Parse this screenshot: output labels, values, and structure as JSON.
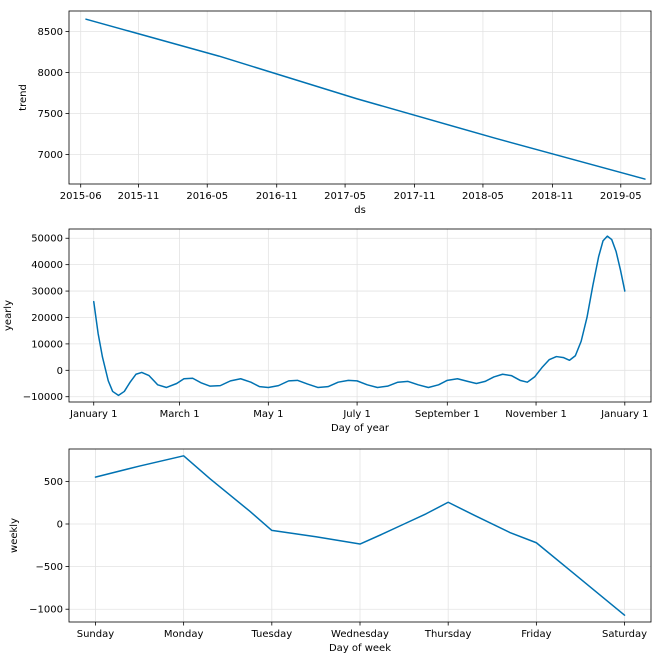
{
  "chart_data": [
    {
      "type": "line",
      "title": "",
      "xlabel": "ds",
      "ylabel": "trend",
      "x_axis": "date",
      "xlim": [
        "2015-05-01",
        "2019-07-20"
      ],
      "ylim": [
        6640,
        8750
      ],
      "xticks": [
        {
          "value": "2015-06-01",
          "label": "2015-06"
        },
        {
          "value": "2015-11-01",
          "label": "2015-11"
        },
        {
          "value": "2016-05-01",
          "label": "2016-05"
        },
        {
          "value": "2016-11-01",
          "label": "2016-11"
        },
        {
          "value": "2017-05-01",
          "label": "2017-05"
        },
        {
          "value": "2017-11-01",
          "label": "2017-11"
        },
        {
          "value": "2018-05-01",
          "label": "2018-05"
        },
        {
          "value": "2018-11-01",
          "label": "2018-11"
        },
        {
          "value": "2019-05-01",
          "label": "2019-05"
        }
      ],
      "yticks": [
        {
          "value": 7000,
          "label": "7000"
        },
        {
          "value": 7500,
          "label": "7500"
        },
        {
          "value": 8000,
          "label": "8000"
        },
        {
          "value": 8500,
          "label": "8500"
        }
      ],
      "grid": true,
      "series": [
        {
          "color": "#0072b2",
          "points": [
            {
              "x": "2015-06-15",
              "y": 8650
            },
            {
              "x": "2016-06-01",
              "y": 8200
            },
            {
              "x": "2017-06-01",
              "y": 7680
            },
            {
              "x": "2018-06-01",
              "y": 7200
            },
            {
              "x": "2019-07-04",
              "y": 6700
            }
          ]
        }
      ]
    },
    {
      "type": "line",
      "title": "",
      "xlabel": "Day of year",
      "ylabel": "yearly",
      "xlim": [
        -17,
        383
      ],
      "ylim": [
        -12000,
        53500
      ],
      "xticks": [
        {
          "value": 0,
          "label": "January 1"
        },
        {
          "value": 59,
          "label": "March 1"
        },
        {
          "value": 120,
          "label": "May 1"
        },
        {
          "value": 181,
          "label": "July 1"
        },
        {
          "value": 243,
          "label": "September 1"
        },
        {
          "value": 304,
          "label": "November 1"
        },
        {
          "value": 365,
          "label": "January 1"
        }
      ],
      "yticks": [
        {
          "value": -10000,
          "label": "−10000"
        },
        {
          "value": 0,
          "label": "0"
        },
        {
          "value": 10000,
          "label": "10000"
        },
        {
          "value": 20000,
          "label": "20000"
        },
        {
          "value": 30000,
          "label": "30000"
        },
        {
          "value": 40000,
          "label": "40000"
        },
        {
          "value": 50000,
          "label": "50000"
        }
      ],
      "grid": true,
      "series": [
        {
          "color": "#0072b2",
          "points": [
            {
              "x": 0,
              "y": 26000
            },
            {
              "x": 3,
              "y": 14000
            },
            {
              "x": 6,
              "y": 5000
            },
            {
              "x": 10,
              "y": -4000
            },
            {
              "x": 13,
              "y": -8000
            },
            {
              "x": 17,
              "y": -9500
            },
            {
              "x": 21,
              "y": -8000
            },
            {
              "x": 25,
              "y": -4500
            },
            {
              "x": 29,
              "y": -1500
            },
            {
              "x": 33,
              "y": -800
            },
            {
              "x": 38,
              "y": -2000
            },
            {
              "x": 44,
              "y": -5500
            },
            {
              "x": 50,
              "y": -6500
            },
            {
              "x": 57,
              "y": -5000
            },
            {
              "x": 62,
              "y": -3200
            },
            {
              "x": 68,
              "y": -3000
            },
            {
              "x": 74,
              "y": -4800
            },
            {
              "x": 80,
              "y": -6000
            },
            {
              "x": 87,
              "y": -5800
            },
            {
              "x": 94,
              "y": -4000
            },
            {
              "x": 101,
              "y": -3200
            },
            {
              "x": 108,
              "y": -4500
            },
            {
              "x": 114,
              "y": -6200
            },
            {
              "x": 120,
              "y": -6500
            },
            {
              "x": 127,
              "y": -5800
            },
            {
              "x": 134,
              "y": -4000
            },
            {
              "x": 140,
              "y": -3800
            },
            {
              "x": 147,
              "y": -5200
            },
            {
              "x": 154,
              "y": -6500
            },
            {
              "x": 161,
              "y": -6200
            },
            {
              "x": 168,
              "y": -4500
            },
            {
              "x": 175,
              "y": -3800
            },
            {
              "x": 181,
              "y": -4000
            },
            {
              "x": 188,
              "y": -5500
            },
            {
              "x": 195,
              "y": -6500
            },
            {
              "x": 202,
              "y": -6000
            },
            {
              "x": 209,
              "y": -4500
            },
            {
              "x": 216,
              "y": -4200
            },
            {
              "x": 223,
              "y": -5500
            },
            {
              "x": 230,
              "y": -6500
            },
            {
              "x": 237,
              "y": -5500
            },
            {
              "x": 243,
              "y": -3800
            },
            {
              "x": 250,
              "y": -3200
            },
            {
              "x": 257,
              "y": -4200
            },
            {
              "x": 263,
              "y": -5000
            },
            {
              "x": 269,
              "y": -4200
            },
            {
              "x": 275,
              "y": -2500
            },
            {
              "x": 281,
              "y": -1500
            },
            {
              "x": 287,
              "y": -2000
            },
            {
              "x": 293,
              "y": -3800
            },
            {
              "x": 298,
              "y": -4500
            },
            {
              "x": 303,
              "y": -2500
            },
            {
              "x": 308,
              "y": 1000
            },
            {
              "x": 313,
              "y": 4000
            },
            {
              "x": 318,
              "y": 5200
            },
            {
              "x": 323,
              "y": 4800
            },
            {
              "x": 327,
              "y": 3800
            },
            {
              "x": 331,
              "y": 5500
            },
            {
              "x": 335,
              "y": 11000
            },
            {
              "x": 339,
              "y": 20000
            },
            {
              "x": 343,
              "y": 32000
            },
            {
              "x": 347,
              "y": 43000
            },
            {
              "x": 350,
              "y": 49000
            },
            {
              "x": 353,
              "y": 50800
            },
            {
              "x": 356,
              "y": 49500
            },
            {
              "x": 359,
              "y": 45000
            },
            {
              "x": 362,
              "y": 38000
            },
            {
              "x": 365,
              "y": 30000
            }
          ]
        }
      ]
    },
    {
      "type": "line",
      "title": "",
      "xlabel": "Day of week",
      "ylabel": "weekly",
      "xlim": [
        -0.3,
        6.3
      ],
      "ylim": [
        -1150,
        880
      ],
      "xticks": [
        {
          "value": 0,
          "label": "Sunday"
        },
        {
          "value": 1,
          "label": "Monday"
        },
        {
          "value": 2,
          "label": "Tuesday"
        },
        {
          "value": 3,
          "label": "Wednesday"
        },
        {
          "value": 4,
          "label": "Thursday"
        },
        {
          "value": 5,
          "label": "Friday"
        },
        {
          "value": 6,
          "label": "Saturday"
        }
      ],
      "yticks": [
        {
          "value": -1000,
          "label": "−1000"
        },
        {
          "value": -500,
          "label": "−500"
        },
        {
          "value": 0,
          "label": "0"
        },
        {
          "value": 500,
          "label": "500"
        }
      ],
      "grid": true,
      "series": [
        {
          "color": "#0072b2",
          "points": [
            {
              "x": 0,
              "y": 550
            },
            {
              "x": 0.5,
              "y": 680
            },
            {
              "x": 1,
              "y": 800
            },
            {
              "x": 1.3,
              "y": 530
            },
            {
              "x": 1.75,
              "y": 150
            },
            {
              "x": 2,
              "y": -75
            },
            {
              "x": 2.5,
              "y": -150
            },
            {
              "x": 3,
              "y": -235
            },
            {
              "x": 3.25,
              "y": -120
            },
            {
              "x": 3.5,
              "y": 0
            },
            {
              "x": 3.75,
              "y": 120
            },
            {
              "x": 4,
              "y": 255
            },
            {
              "x": 4.3,
              "y": 100
            },
            {
              "x": 4.7,
              "y": -100
            },
            {
              "x": 5,
              "y": -220
            },
            {
              "x": 5.4,
              "y": -560
            },
            {
              "x": 5.8,
              "y": -900
            },
            {
              "x": 6,
              "y": -1070
            }
          ]
        }
      ]
    }
  ]
}
